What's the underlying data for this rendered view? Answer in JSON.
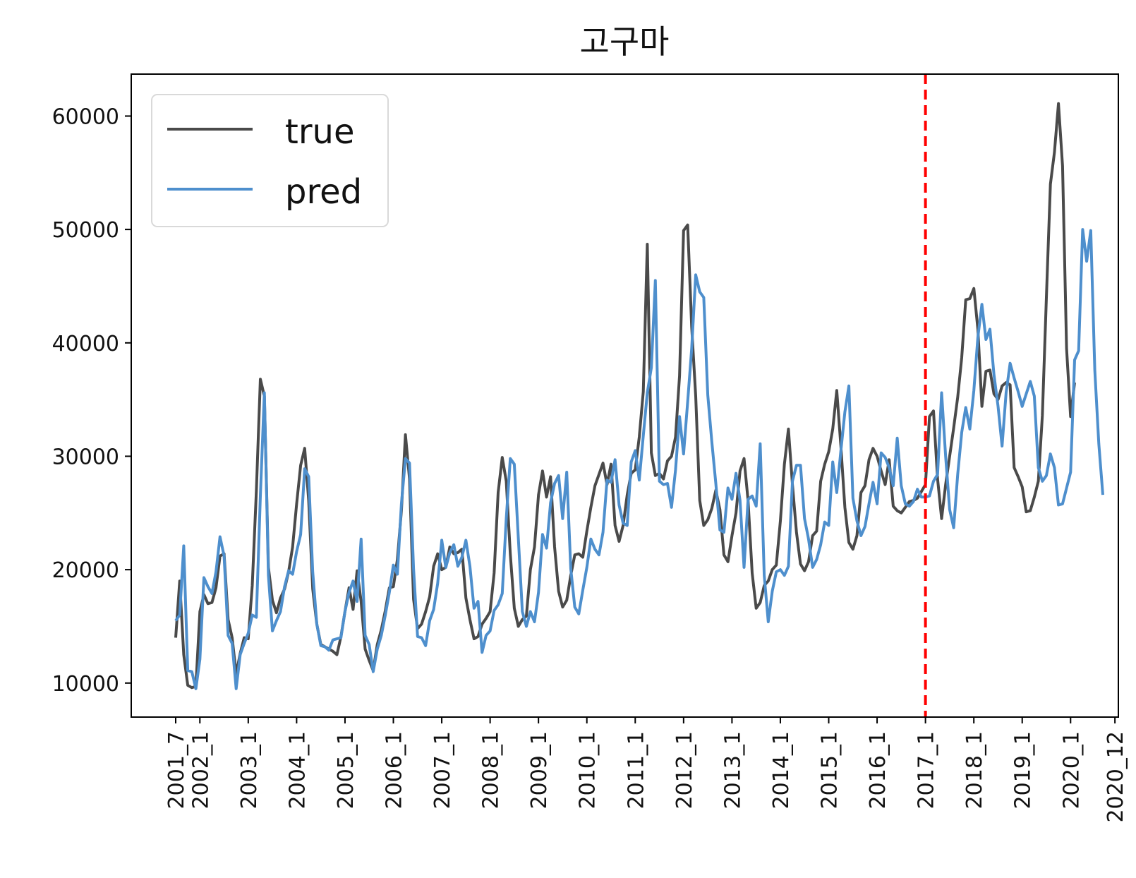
{
  "chart_data": {
    "type": "line",
    "title": "고구마",
    "xlabel": "",
    "ylabel": "",
    "ylim": [
      7000,
      63700
    ],
    "yticks": [
      10000,
      20000,
      30000,
      40000,
      50000,
      60000
    ],
    "xtick_labels": [
      {
        "label": "2001_7",
        "index": 0
      },
      {
        "label": "2002_1",
        "index": 6
      },
      {
        "label": "2003_1",
        "index": 18
      },
      {
        "label": "2004_1",
        "index": 30
      },
      {
        "label": "2005_1",
        "index": 42
      },
      {
        "label": "2006_1",
        "index": 54
      },
      {
        "label": "2007_1",
        "index": 66
      },
      {
        "label": "2008_1",
        "index": 78
      },
      {
        "label": "2009_1",
        "index": 90
      },
      {
        "label": "2010_1",
        "index": 102
      },
      {
        "label": "2011_1",
        "index": 114
      },
      {
        "label": "2012_1",
        "index": 126
      },
      {
        "label": "2013_1",
        "index": 138
      },
      {
        "label": "2014_1",
        "index": 150
      },
      {
        "label": "2015_1",
        "index": 162
      },
      {
        "label": "2016_1",
        "index": 174
      },
      {
        "label": "2017_1",
        "index": 186
      },
      {
        "label": "2018_1",
        "index": 198
      },
      {
        "label": "2019_1",
        "index": 210
      },
      {
        "label": "2020_1",
        "index": 222
      },
      {
        "label": "2020_12",
        "index": 233
      }
    ],
    "split_marker": {
      "label": "2017_1",
      "index": 186,
      "color": "#ff0000"
    },
    "legend_position": "top-left",
    "grid": false,
    "series": [
      {
        "name": "true",
        "color": "#4a4a4a",
        "values": [
          14000,
          19000,
          12500,
          9800,
          9600,
          9700,
          16300,
          17800,
          17000,
          17100,
          18400,
          21200,
          21400,
          15600,
          14000,
          10800,
          12600,
          14000,
          13900,
          18600,
          26900,
          36800,
          35300,
          20200,
          17300,
          16200,
          17500,
          18300,
          19800,
          22000,
          25800,
          29200,
          30700,
          26100,
          18300,
          15200,
          13400,
          13200,
          13000,
          12800,
          12500,
          14100,
          16300,
          18400,
          16500,
          19900,
          17200,
          13000,
          12000,
          11100,
          13400,
          14700,
          16400,
          18400,
          18500,
          20900,
          25200,
          31900,
          28000,
          17400,
          14800,
          15200,
          16300,
          17600,
          20300,
          21400,
          20000,
          20200,
          22000,
          21400,
          21500,
          21800,
          17500,
          15600,
          13900,
          14100,
          15200,
          15700,
          16300,
          19700,
          26800,
          29900,
          27800,
          21400,
          16600,
          15000,
          15600,
          15900,
          20000,
          22000,
          26600,
          28700,
          26400,
          28200,
          22000,
          18100,
          16700,
          17300,
          19500,
          21300,
          21400,
          21100,
          23400,
          25500,
          27400,
          28400,
          29400,
          27500,
          29300,
          23900,
          22500,
          23900,
          26600,
          28500,
          28800,
          31700,
          35700,
          48700,
          30300,
          28300,
          28500,
          28000,
          29600,
          30000,
          31700,
          37100,
          49900,
          50400,
          41400,
          35300,
          26100,
          23900,
          24400,
          25400,
          27000,
          25300,
          21300,
          20700,
          23000,
          25000,
          28700,
          29800,
          26100,
          19700,
          16600,
          17100,
          18600,
          19000,
          20000,
          20400,
          24300,
          29300,
          32400,
          27500,
          23300,
          20500,
          19900,
          20700,
          23000,
          23400,
          27800,
          29300,
          30400,
          32400,
          35800,
          31000,
          25500,
          22400,
          21800,
          23000,
          26800,
          27400,
          29700,
          30700,
          30000,
          28700,
          27500,
          29700,
          25600,
          25200,
          25000,
          25500,
          26000,
          26100,
          26300,
          26900,
          27500,
          33500,
          34000,
          28000,
          24500,
          27500,
          30000,
          32500,
          35200,
          38700,
          43800,
          43900,
          44800,
          41200,
          34400,
          37500,
          37600,
          35500,
          35000,
          36200,
          36500,
          36300,
          29000,
          28200,
          27300,
          25100,
          25200,
          26400,
          27800,
          33600,
          44000,
          54000,
          56800,
          61100,
          55600,
          39500,
          33500,
          36500
        ]
      },
      {
        "name": "pred",
        "color": "#4e8fcd",
        "values": [
          15500,
          16000,
          22100,
          11100,
          11000,
          9500,
          12100,
          19300,
          18500,
          17900,
          19800,
          22900,
          21200,
          14200,
          13500,
          9500,
          12500,
          13500,
          14400,
          16000,
          15800,
          26500,
          35600,
          19500,
          14600,
          15500,
          16300,
          18500,
          19900,
          19600,
          21600,
          23100,
          28900,
          28200,
          19800,
          15200,
          13300,
          13200,
          12900,
          13800,
          13900,
          14000,
          16300,
          18000,
          19000,
          17200,
          22700,
          14200,
          13400,
          11000,
          13000,
          14200,
          16000,
          18000,
          20400,
          19600,
          25800,
          29800,
          29400,
          20100,
          14100,
          14000,
          13300,
          15500,
          16500,
          18800,
          22600,
          20200,
          21500,
          22200,
          20300,
          21100,
          22600,
          20300,
          16600,
          17200,
          12700,
          14200,
          14600,
          16400,
          16900,
          17900,
          24500,
          29800,
          29300,
          22800,
          16300,
          15000,
          16300,
          15400,
          18000,
          23100,
          21900,
          25900,
          27600,
          28300,
          24500,
          28600,
          20100,
          16700,
          16100,
          18200,
          20200,
          22700,
          21800,
          21300,
          23300,
          27900,
          27700,
          29700,
          25700,
          24100,
          23900,
          29500,
          30500,
          27900,
          31800,
          35600,
          37800,
          45500,
          27800,
          27500,
          27600,
          25500,
          28800,
          33500,
          30200,
          34800,
          39500,
          46000,
          44500,
          44000,
          35400,
          31300,
          27600,
          23500,
          23300,
          27200,
          26200,
          28500,
          26100,
          20200,
          26200,
          26500,
          25600,
          31100,
          19500,
          15400,
          18100,
          19800,
          20000,
          19500,
          20300,
          27800,
          29200,
          29200,
          24500,
          22700,
          20200,
          20900,
          22200,
          24200,
          23900,
          29500,
          26800,
          30400,
          33900,
          36200,
          26300,
          24300,
          23000,
          23800,
          25800,
          27700,
          25800,
          30300,
          29900,
          29000,
          27400,
          31600,
          27400,
          25800,
          25600,
          26000,
          27100,
          26400,
          26400,
          26500,
          27800,
          28400,
          35600,
          30000,
          25300,
          23700,
          28400,
          32100,
          34300,
          32400,
          35800,
          40500,
          43400,
          40300,
          41200,
          37200,
          34400,
          30900,
          35600,
          38200,
          36900,
          35700,
          34400,
          35500,
          36600,
          35300,
          29000,
          27800,
          28300,
          30200,
          29000,
          25700,
          25800,
          27200,
          28600,
          38500,
          39300,
          50000,
          47200,
          49900,
          37600,
          31100,
          26600
        ]
      }
    ]
  }
}
